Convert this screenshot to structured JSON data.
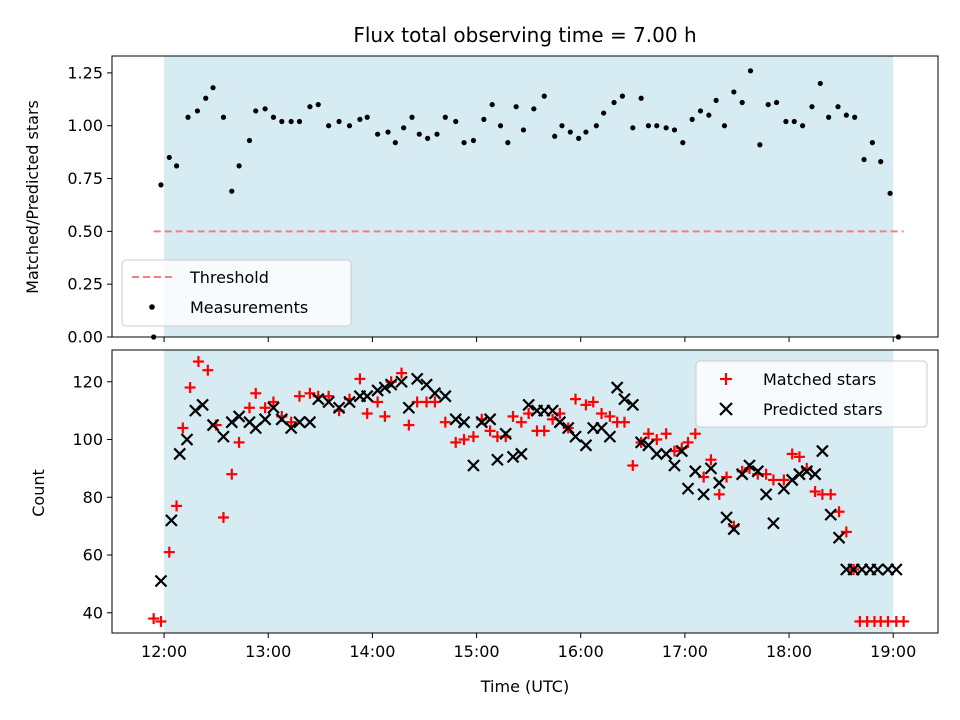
{
  "chart_data": [
    {
      "type": "scatter",
      "title": "Flux total observing time = 7.00 h",
      "xlabel": "",
      "ylabel": "Matched/Predicted stars",
      "xlim": [
        11.5,
        19.43
      ],
      "ylim": [
        0.0,
        1.33
      ],
      "yticks": [
        0.0,
        0.25,
        0.5,
        0.75,
        1.0,
        1.25
      ],
      "yticklabels": [
        "0.00",
        "0.25",
        "0.50",
        "0.75",
        "1.00",
        "1.25"
      ],
      "shaded_x": [
        12.0,
        19.0
      ],
      "shade_color": "#add8e6",
      "threshold": {
        "name": "Threshold",
        "y": 0.5,
        "x": [
          11.9,
          19.1
        ],
        "color": "#f08080",
        "style": "dashed"
      },
      "series": [
        {
          "name": "Measurements",
          "marker": "dot",
          "color": "#000000",
          "x": [
            11.9,
            11.97,
            12.05,
            12.12,
            12.23,
            12.32,
            12.4,
            12.47,
            12.57,
            12.65,
            12.72,
            12.82,
            12.88,
            12.97,
            13.05,
            13.13,
            13.22,
            13.3,
            13.4,
            13.48,
            13.58,
            13.68,
            13.78,
            13.88,
            13.95,
            14.05,
            14.15,
            14.22,
            14.3,
            14.38,
            14.45,
            14.53,
            14.62,
            14.7,
            14.8,
            14.88,
            14.97,
            15.07,
            15.15,
            15.23,
            15.3,
            15.38,
            15.45,
            15.55,
            15.65,
            15.75,
            15.82,
            15.9,
            15.98,
            16.05,
            16.15,
            16.22,
            16.32,
            16.4,
            16.5,
            16.58,
            16.65,
            16.73,
            16.82,
            16.9,
            16.98,
            17.07,
            17.15,
            17.23,
            17.3,
            17.38,
            17.47,
            17.55,
            17.63,
            17.72,
            17.8,
            17.88,
            17.97,
            18.05,
            18.13,
            18.22,
            18.3,
            18.38,
            18.47,
            18.55,
            18.63,
            18.72,
            18.8,
            18.88,
            18.97,
            19.05
          ],
          "y": [
            0.0,
            0.72,
            0.85,
            0.81,
            1.04,
            1.07,
            1.13,
            1.18,
            1.04,
            0.69,
            0.81,
            0.93,
            1.07,
            1.08,
            1.04,
            1.02,
            1.02,
            1.02,
            1.09,
            1.1,
            1.0,
            1.02,
            1.0,
            1.03,
            1.04,
            0.96,
            0.97,
            0.92,
            0.99,
            1.04,
            0.96,
            0.94,
            0.96,
            1.04,
            1.02,
            0.92,
            0.93,
            1.03,
            1.1,
            1.0,
            0.92,
            1.09,
            0.98,
            1.08,
            1.14,
            0.95,
            1.0,
            0.97,
            0.94,
            0.97,
            1.0,
            1.06,
            1.11,
            1.14,
            0.99,
            1.13,
            1.0,
            1.0,
            0.99,
            0.98,
            0.92,
            1.03,
            1.07,
            1.05,
            1.12,
            1.0,
            1.16,
            1.11,
            1.26,
            0.91,
            1.1,
            1.11,
            1.02,
            1.02,
            1.0,
            1.09,
            1.2,
            1.04,
            1.09,
            1.05,
            1.04,
            0.84,
            0.92,
            0.83,
            0.68,
            0.0
          ]
        }
      ],
      "legend_loc": "lower-left"
    },
    {
      "type": "scatter",
      "title": "",
      "xlabel": "Time (UTC)",
      "ylabel": "Count",
      "xlim": [
        11.5,
        19.43
      ],
      "ylim": [
        33,
        131
      ],
      "xticks": [
        12,
        13,
        14,
        15,
        16,
        17,
        18,
        19
      ],
      "xticklabels": [
        "12:00",
        "13:00",
        "14:00",
        "15:00",
        "16:00",
        "17:00",
        "18:00",
        "19:00"
      ],
      "yticks": [
        40,
        60,
        80,
        100,
        120
      ],
      "yticklabels": [
        "40",
        "60",
        "80",
        "100",
        "120"
      ],
      "shaded_x": [
        12.0,
        19.0
      ],
      "shade_color": "#add8e6",
      "series": [
        {
          "name": "Matched stars",
          "marker": "plus",
          "color": "#ff0000",
          "x": [
            11.9,
            11.97,
            12.05,
            12.12,
            12.18,
            12.25,
            12.33,
            12.42,
            12.5,
            12.57,
            12.65,
            12.72,
            12.82,
            12.88,
            12.97,
            13.05,
            13.13,
            13.22,
            13.3,
            13.4,
            13.48,
            13.58,
            13.68,
            13.78,
            13.88,
            13.95,
            14.05,
            14.12,
            14.18,
            14.28,
            14.35,
            14.43,
            14.52,
            14.6,
            14.7,
            14.8,
            14.88,
            14.97,
            15.05,
            15.13,
            15.2,
            15.28,
            15.35,
            15.43,
            15.5,
            15.58,
            15.65,
            15.73,
            15.8,
            15.88,
            15.95,
            16.05,
            16.12,
            16.2,
            16.28,
            16.35,
            16.42,
            16.5,
            16.58,
            16.65,
            16.73,
            16.82,
            16.9,
            16.97,
            17.03,
            17.1,
            17.18,
            17.25,
            17.33,
            17.4,
            17.47,
            17.55,
            17.62,
            17.7,
            17.78,
            17.85,
            17.95,
            18.03,
            18.1,
            18.17,
            18.25,
            18.32,
            18.4,
            18.48,
            18.55,
            18.62,
            18.68,
            18.75,
            18.82,
            18.88,
            18.95,
            19.03,
            19.1
          ],
          "y": [
            38,
            37,
            61,
            77,
            104,
            118,
            127,
            124,
            105,
            73,
            88,
            99,
            111,
            116,
            111,
            113,
            108,
            106,
            115,
            116,
            115,
            115,
            110,
            114,
            121,
            109,
            113,
            108,
            120,
            123,
            105,
            113,
            113,
            113,
            106,
            99,
            100,
            101,
            107,
            103,
            101,
            101,
            108,
            106,
            109,
            103,
            103,
            107,
            109,
            104,
            114,
            112,
            113,
            109,
            108,
            106,
            106,
            91,
            99,
            102,
            100,
            102,
            96,
            97,
            99,
            102,
            87,
            93,
            81,
            87,
            70,
            89,
            90,
            88,
            88,
            86,
            86,
            95,
            94,
            90,
            82,
            81,
            81,
            75,
            68,
            55,
            37,
            37,
            37,
            37,
            37,
            37,
            37
          ],
          "draw_count": 89
        },
        {
          "name": "Predicted stars",
          "marker": "x",
          "color": "#000000",
          "x": [
            11.97,
            12.07,
            12.15,
            12.22,
            12.3,
            12.37,
            12.47,
            12.57,
            12.65,
            12.72,
            12.82,
            12.88,
            12.97,
            13.05,
            13.13,
            13.22,
            13.3,
            13.4,
            13.48,
            13.58,
            13.68,
            13.78,
            13.88,
            13.95,
            14.05,
            14.12,
            14.18,
            14.28,
            14.35,
            14.43,
            14.52,
            14.6,
            14.7,
            14.8,
            14.88,
            14.97,
            15.05,
            15.13,
            15.2,
            15.28,
            15.35,
            15.43,
            15.5,
            15.58,
            15.65,
            15.73,
            15.8,
            15.88,
            15.95,
            16.05,
            16.12,
            16.2,
            16.28,
            16.35,
            16.42,
            16.5,
            16.58,
            16.65,
            16.73,
            16.82,
            16.9,
            16.97,
            17.03,
            17.1,
            17.18,
            17.25,
            17.33,
            17.4,
            17.47,
            17.55,
            17.62,
            17.7,
            17.78,
            17.85,
            17.95,
            18.03,
            18.1,
            18.17,
            18.25,
            18.32,
            18.4,
            18.48,
            18.55,
            18.62,
            18.7,
            18.78,
            18.85,
            18.95,
            19.03
          ],
          "y": [
            51,
            72,
            95,
            100,
            110,
            112,
            105,
            101,
            106,
            108,
            106,
            104,
            107,
            111,
            107,
            104,
            106,
            106,
            114,
            113,
            111,
            113,
            115,
            115,
            117,
            118,
            119,
            120,
            111,
            121,
            119,
            116,
            115,
            107,
            106,
            91,
            106,
            107,
            93,
            102,
            94,
            95,
            112,
            110,
            110,
            110,
            106,
            104,
            101,
            98,
            104,
            104,
            101,
            118,
            114,
            112,
            99,
            98,
            95,
            95,
            91,
            96,
            83,
            89,
            81,
            90,
            85,
            73,
            69,
            88,
            91,
            89,
            81,
            71,
            83,
            86,
            88,
            89,
            88,
            96,
            74,
            66,
            55,
            55,
            55,
            55,
            55,
            55,
            55
          ],
          "draw_count": 83
        }
      ],
      "legend_loc": "upper-right"
    }
  ]
}
